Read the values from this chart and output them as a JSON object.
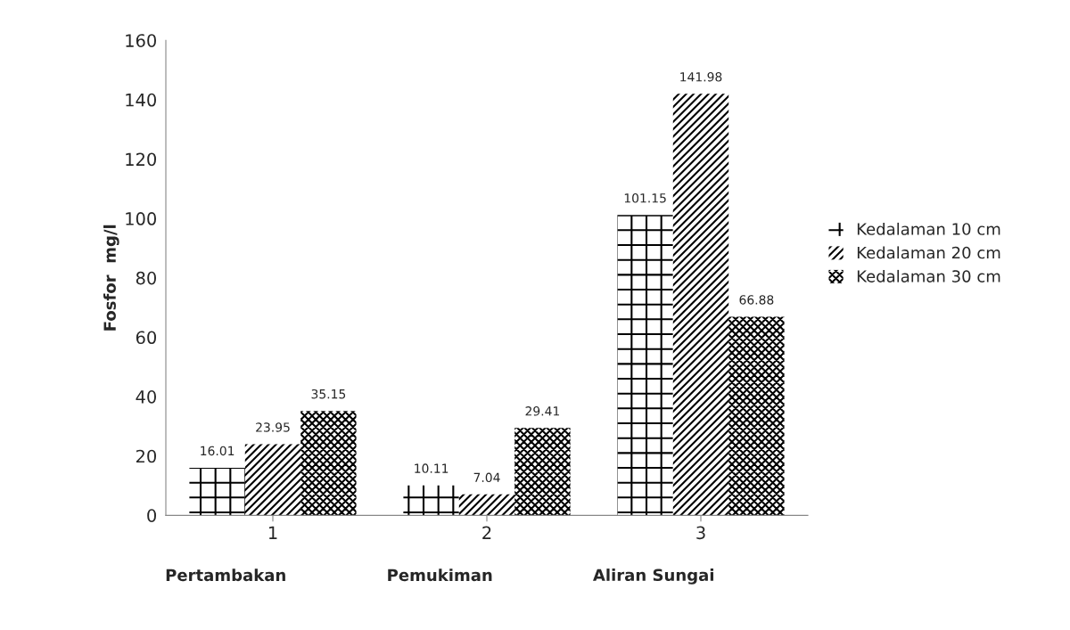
{
  "chart_data": {
    "type": "bar",
    "ylabel": "Fosfor  mg/l",
    "categories": [
      "1",
      "2",
      "3"
    ],
    "series": [
      {
        "name": "Kedalaman 10 cm",
        "color": "#000000",
        "values": [
          16.01,
          10.11,
          101.15
        ]
      },
      {
        "name": "Kedalaman 20 cm",
        "color": "#000000",
        "values": [
          23.95,
          7.04,
          141.98
        ]
      },
      {
        "name": "Kedalaman 30 cm",
        "color": "#000000",
        "values": [
          35.15,
          29.41,
          66.88
        ]
      }
    ],
    "ylim": [
      0,
      160
    ],
    "yticks": [
      0,
      20,
      40,
      60,
      80,
      100,
      120,
      140,
      160
    ],
    "grid": false,
    "legend": "right",
    "data_labels": true,
    "annotations": [
      "Pertambakan",
      "Pemukiman",
      "Aliran Sungai"
    ]
  }
}
